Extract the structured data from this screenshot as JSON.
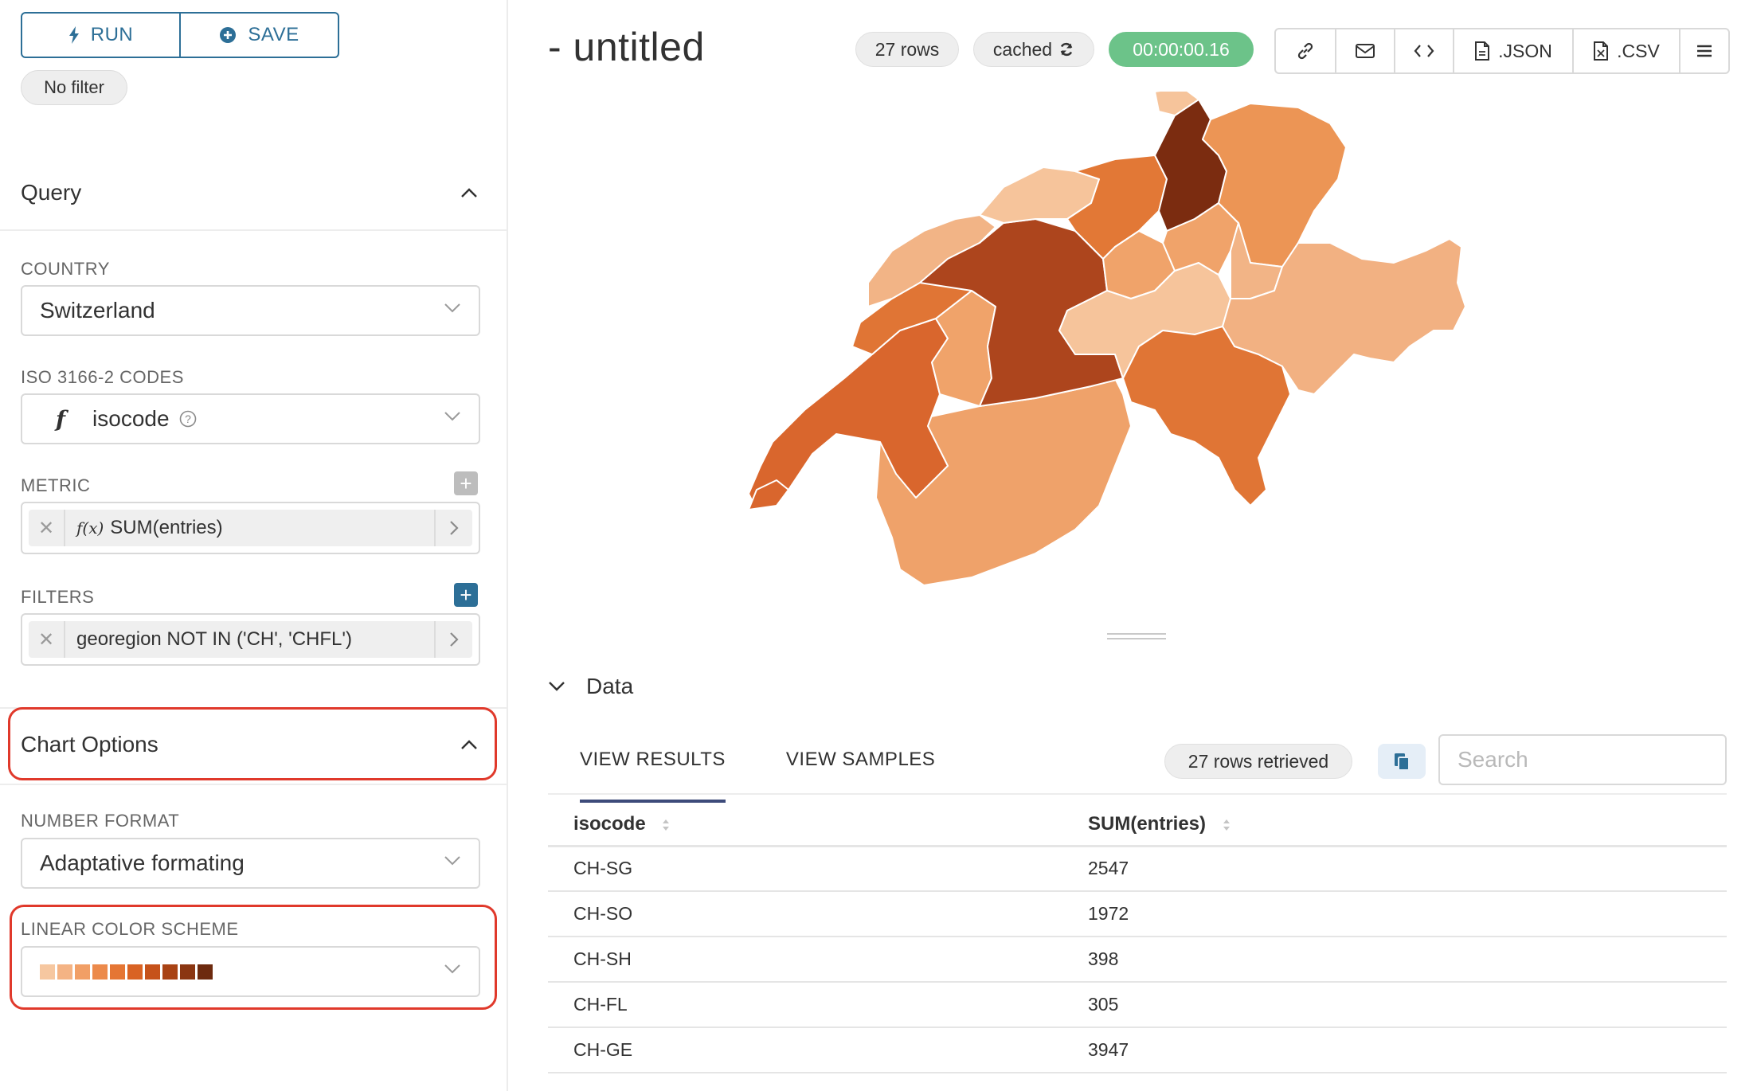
{
  "controls": {
    "run_label": "RUN",
    "save_label": "SAVE",
    "time_filter": "No filter"
  },
  "query": {
    "title": "Query",
    "country_label": "COUNTRY",
    "country_value": "Switzerland",
    "iso_label": "ISO 3166-2 CODES",
    "iso_value": "isocode",
    "metric_label": "METRIC",
    "metric_fx": "f(x)",
    "metric_value": "SUM(entries)",
    "filters_label": "FILTERS",
    "filter_value": "georegion NOT IN ('CH', 'CHFL')"
  },
  "chart_options": {
    "title": "Chart Options",
    "number_format_label": "NUMBER FORMAT",
    "number_format_value": "Adaptative formating",
    "color_scheme_label": "LINEAR COLOR SCHEME",
    "color_scheme_swatches": [
      "#f6c7a0",
      "#f4b384",
      "#f19f66",
      "#ec8a4b",
      "#e57634",
      "#d96324",
      "#c6521a",
      "#a94315",
      "#8b3612",
      "#6d2a0f"
    ]
  },
  "header": {
    "title": "- untitled",
    "rows": "27 rows",
    "cached": "cached",
    "timer": "00:00:00.16",
    "json_label": ".JSON",
    "csv_label": ".CSV"
  },
  "map": {
    "regions": [
      {
        "name": "zurich",
        "color": "#7b2c10"
      },
      {
        "name": "bern",
        "color": "#ad451d"
      },
      {
        "name": "vaud",
        "color": "#d9662d"
      },
      {
        "name": "ticino",
        "color": "#e07535"
      },
      {
        "name": "valais",
        "color": "#efa26a"
      },
      {
        "name": "graubunden",
        "color": "#f2b182"
      },
      {
        "name": "aargau",
        "color": "#e27836"
      },
      {
        "name": "stgallen",
        "color": "#ec9555"
      },
      {
        "name": "fribourg",
        "color": "#f0a36a"
      },
      {
        "name": "jura",
        "color": "#f2b486"
      },
      {
        "name": "central",
        "color": "#f6c49b"
      }
    ]
  },
  "data_panel": {
    "title": "Data",
    "tab_results": "VIEW RESULTS",
    "tab_samples": "VIEW SAMPLES",
    "rows_retrieved": "27 rows retrieved",
    "search_placeholder": "Search",
    "columns": [
      "isocode",
      "SUM(entries)"
    ],
    "rows": [
      [
        "CH-SG",
        "2547"
      ],
      [
        "CH-SO",
        "1972"
      ],
      [
        "CH-SH",
        "398"
      ],
      [
        "CH-FL",
        "305"
      ],
      [
        "CH-GE",
        "3947"
      ]
    ]
  }
}
